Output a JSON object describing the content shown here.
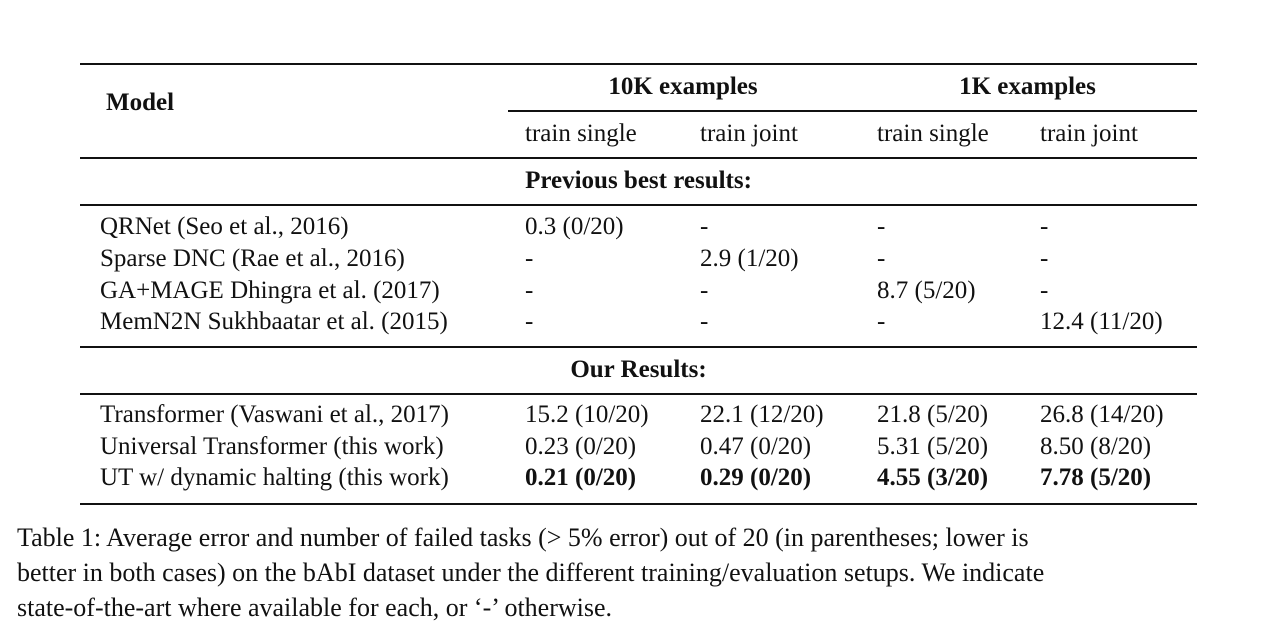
{
  "table": {
    "header": {
      "model": "Model",
      "group1": "10K examples",
      "group2": "1K examples",
      "sub": [
        "train single",
        "train joint",
        "train single",
        "train joint"
      ]
    },
    "sections": [
      {
        "title": "Previous best results:",
        "rows": [
          {
            "model": "QRNet (Seo et al., 2016)",
            "cells": [
              "0.3 (0/20)",
              "-",
              "-",
              "-"
            ]
          },
          {
            "model": "Sparse DNC (Rae et al., 2016)",
            "cells": [
              "-",
              "2.9 (1/20)",
              "-",
              "-"
            ]
          },
          {
            "model": "GA+MAGE Dhingra et al. (2017)",
            "cells": [
              "-",
              "-",
              "8.7 (5/20)",
              "-"
            ]
          },
          {
            "model": "MemN2N Sukhbaatar et al. (2015)",
            "cells": [
              "-",
              "-",
              "-",
              "12.4 (11/20)"
            ]
          }
        ]
      },
      {
        "title": "Our Results:",
        "rows": [
          {
            "model": "Transformer (Vaswani et al., 2017)",
            "cells": [
              "15.2 (10/20)",
              "22.1 (12/20)",
              "21.8 (5/20)",
              "26.8 (14/20)"
            ]
          },
          {
            "model": "Universal Transformer (this work)",
            "cells": [
              "0.23 (0/20)",
              "0.47 (0/20)",
              "5.31 (5/20)",
              "8.50 (8/20)"
            ]
          },
          {
            "model": "UT w/ dynamic halting (this work)",
            "cells": [
              "0.21 (0/20)",
              "0.29 (0/20)",
              "4.55 (3/20)",
              "7.78 (5/20)"
            ]
          }
        ]
      }
    ]
  },
  "caption": {
    "line1": "Table 1:  Average error and number of failed tasks (> 5% error) out of 20 (in parentheses; lower is",
    "line2": "better in both cases) on the bAbI dataset under the different training/evaluation setups. We indicate",
    "line3": "state-of-the-art where available for each, or ‘-’ otherwise."
  }
}
